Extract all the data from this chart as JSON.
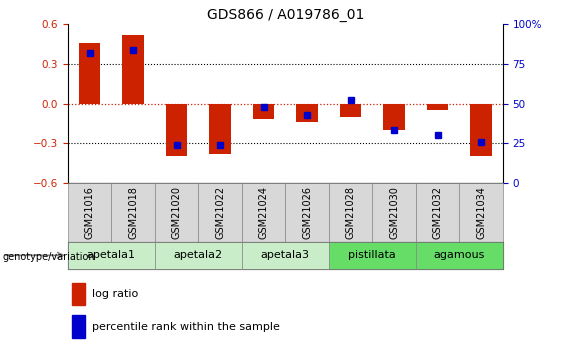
{
  "title": "GDS866 / A019786_01",
  "samples": [
    "GSM21016",
    "GSM21018",
    "GSM21020",
    "GSM21022",
    "GSM21024",
    "GSM21026",
    "GSM21028",
    "GSM21030",
    "GSM21032",
    "GSM21034"
  ],
  "log_ratio": [
    0.46,
    0.52,
    -0.4,
    -0.38,
    -0.12,
    -0.14,
    -0.1,
    -0.2,
    -0.05,
    -0.4
  ],
  "percentile_rank": [
    82,
    84,
    24,
    24,
    48,
    43,
    52,
    33,
    30,
    26
  ],
  "groups": [
    {
      "label": "apetala1",
      "indices": [
        0,
        1
      ],
      "color": "#c8edc8"
    },
    {
      "label": "apetala2",
      "indices": [
        2,
        3
      ],
      "color": "#c8edc8"
    },
    {
      "label": "apetala3",
      "indices": [
        4,
        5
      ],
      "color": "#c8edc8"
    },
    {
      "label": "pistillata",
      "indices": [
        6,
        7
      ],
      "color": "#66dd66"
    },
    {
      "label": "agamous",
      "indices": [
        8,
        9
      ],
      "color": "#66dd66"
    }
  ],
  "bar_color": "#cc2200",
  "dot_color": "#0000cc",
  "ylim_left": [
    -0.6,
    0.6
  ],
  "ylim_right": [
    0,
    100
  ],
  "yticks_left": [
    -0.6,
    -0.3,
    0.0,
    0.3,
    0.6
  ],
  "yticks_right": [
    0,
    25,
    50,
    75,
    100
  ],
  "hline_color": "#cc2200",
  "grid_color": "#000000",
  "bar_width": 0.5,
  "sample_box_color": "#d8d8d8",
  "sample_box_edge": "#888888"
}
